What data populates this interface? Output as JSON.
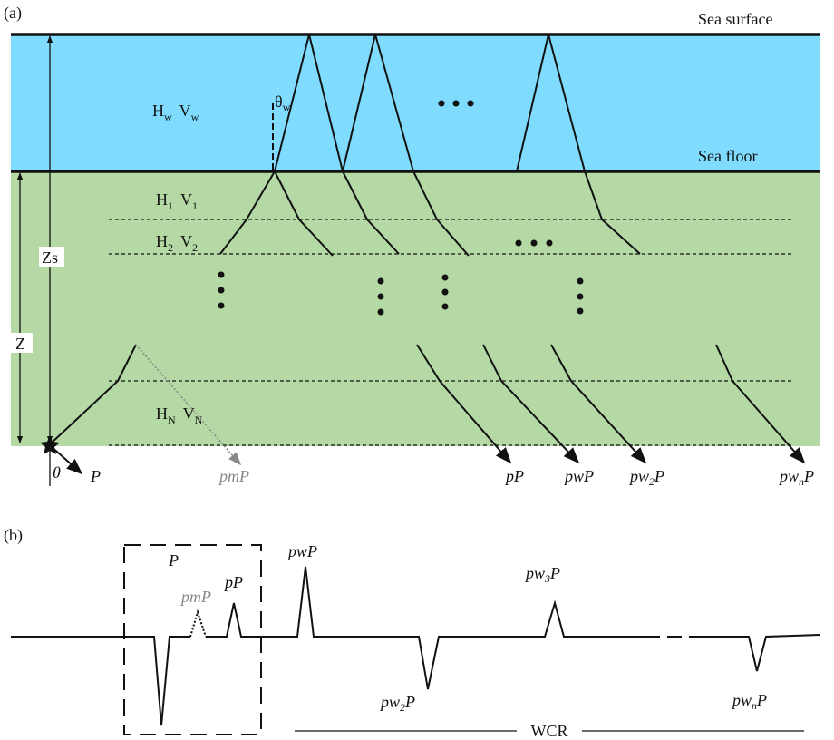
{
  "panel_a": {
    "label": "(a)",
    "sea_surface": "Sea surface",
    "sea_floor": "Sea floor",
    "water_layer": {
      "h": "H",
      "h_sub": "w",
      "v": "V",
      "v_sub": "w"
    },
    "theta_w": {
      "main": "θ",
      "sub": "w"
    },
    "layers": [
      {
        "h": "H",
        "h_sub": "1",
        "v": "V",
        "v_sub": "1"
      },
      {
        "h": "H",
        "h_sub": "2",
        "v": "V",
        "v_sub": "2"
      },
      {
        "h": "H",
        "h_sub": "N",
        "v": "V",
        "v_sub": "N"
      }
    ],
    "depth_labels": {
      "zs": "Zs",
      "z": "Z"
    },
    "takeoff_angle": "θ",
    "source_phase": "P",
    "phases": [
      {
        "pre": "pmP"
      },
      {
        "pre": "pP"
      },
      {
        "pre": "pwP"
      },
      {
        "pre": "pw",
        "sub": "2",
        "post": "P"
      },
      {
        "pre": "pw",
        "sub": "n",
        "post": "P"
      }
    ]
  },
  "panel_b": {
    "label": "(b)",
    "box_label": "P",
    "phases": [
      {
        "pre": "pmP"
      },
      {
        "pre": "pP"
      },
      {
        "pre": "pwP"
      },
      {
        "pre": "pw",
        "sub": "3",
        "post": "P"
      },
      {
        "pre": "pw",
        "sub": "2",
        "post": "P"
      },
      {
        "pre": "pw",
        "sub": "n",
        "post": "P"
      }
    ],
    "wcr": "WCR"
  }
}
